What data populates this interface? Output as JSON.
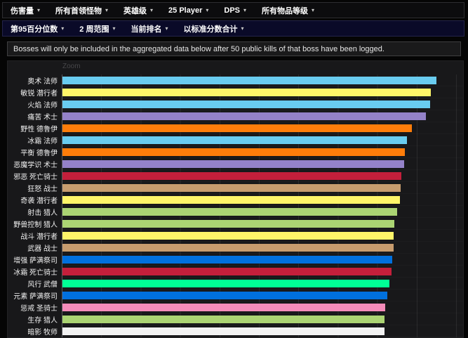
{
  "menubar_primary": {
    "items": [
      {
        "name": "damage-done",
        "label": "伤害量"
      },
      {
        "name": "all-bosses",
        "label": "所有首领怪物"
      },
      {
        "name": "heroic-difficulty",
        "label": "英雄级"
      },
      {
        "name": "25-player",
        "label": "25 Player"
      },
      {
        "name": "dps-metric",
        "label": "DPS"
      },
      {
        "name": "all-item-levels",
        "label": "所有物品等级"
      }
    ]
  },
  "menubar_secondary": {
    "items": [
      {
        "name": "95th-percentile",
        "label": "第95百分位数"
      },
      {
        "name": "2-week-range",
        "label": "2 周范围"
      },
      {
        "name": "current-rankings",
        "label": "当前排名"
      },
      {
        "name": "aggregate-by-standard-score",
        "label": "以标准分数合计"
      }
    ]
  },
  "notice": {
    "text": "Bosses will only be included in the aggregated data below after 50 public kills of that boss have been logged."
  },
  "chart": {
    "zoom_label": "Zoom"
  },
  "ui": {
    "caret_glyph": "▾"
  },
  "chart_data": {
    "type": "bar",
    "orientation": "horizontal",
    "title": "",
    "xlabel": "",
    "ylabel": "",
    "legend": "none",
    "grid": "vertical gridlines only; numeric axis labels cut off below viewport",
    "x_units": "relative score (1.0 = one gridline division, axis unlabeled in screenshot)",
    "xlim": [
      0,
      10.2
    ],
    "categories": [
      "奥术 法师",
      "敏锐 潜行者",
      "火焰 法师",
      "痛苦 术士",
      "野性 德鲁伊",
      "冰霜 法师",
      "平衡 德鲁伊",
      "恶魔学识 术士",
      "邪恶 死亡骑士",
      "狂怒 战士",
      "奇袭 潜行者",
      "射击 猎人",
      "野兽控制 猎人",
      "战斗 潜行者",
      "武器 战士",
      "增强 萨满祭司",
      "冰霜 死亡骑士",
      "风行 武僧",
      "元素 萨满祭司",
      "惩戒 圣骑士",
      "生存 猎人",
      "暗影 牧师"
    ],
    "values": [
      9.48,
      9.34,
      9.33,
      9.21,
      8.86,
      8.73,
      8.69,
      8.67,
      8.59,
      8.57,
      8.56,
      8.48,
      8.41,
      8.4,
      8.39,
      8.37,
      8.34,
      8.29,
      8.24,
      8.18,
      8.17,
      8.16
    ],
    "colors": [
      "#69CCF0",
      "#FFF569",
      "#69CCF0",
      "#9482C9",
      "#FF7D0A",
      "#69CCF0",
      "#FF7D0A",
      "#9482C9",
      "#C41F3B",
      "#C79C6E",
      "#FFF569",
      "#ABD473",
      "#ABD473",
      "#FFF569",
      "#C79C6E",
      "#0070DE",
      "#C41F3B",
      "#00FF96",
      "#0070DE",
      "#F58CBA",
      "#ABD473",
      "#F2F2F2"
    ]
  }
}
